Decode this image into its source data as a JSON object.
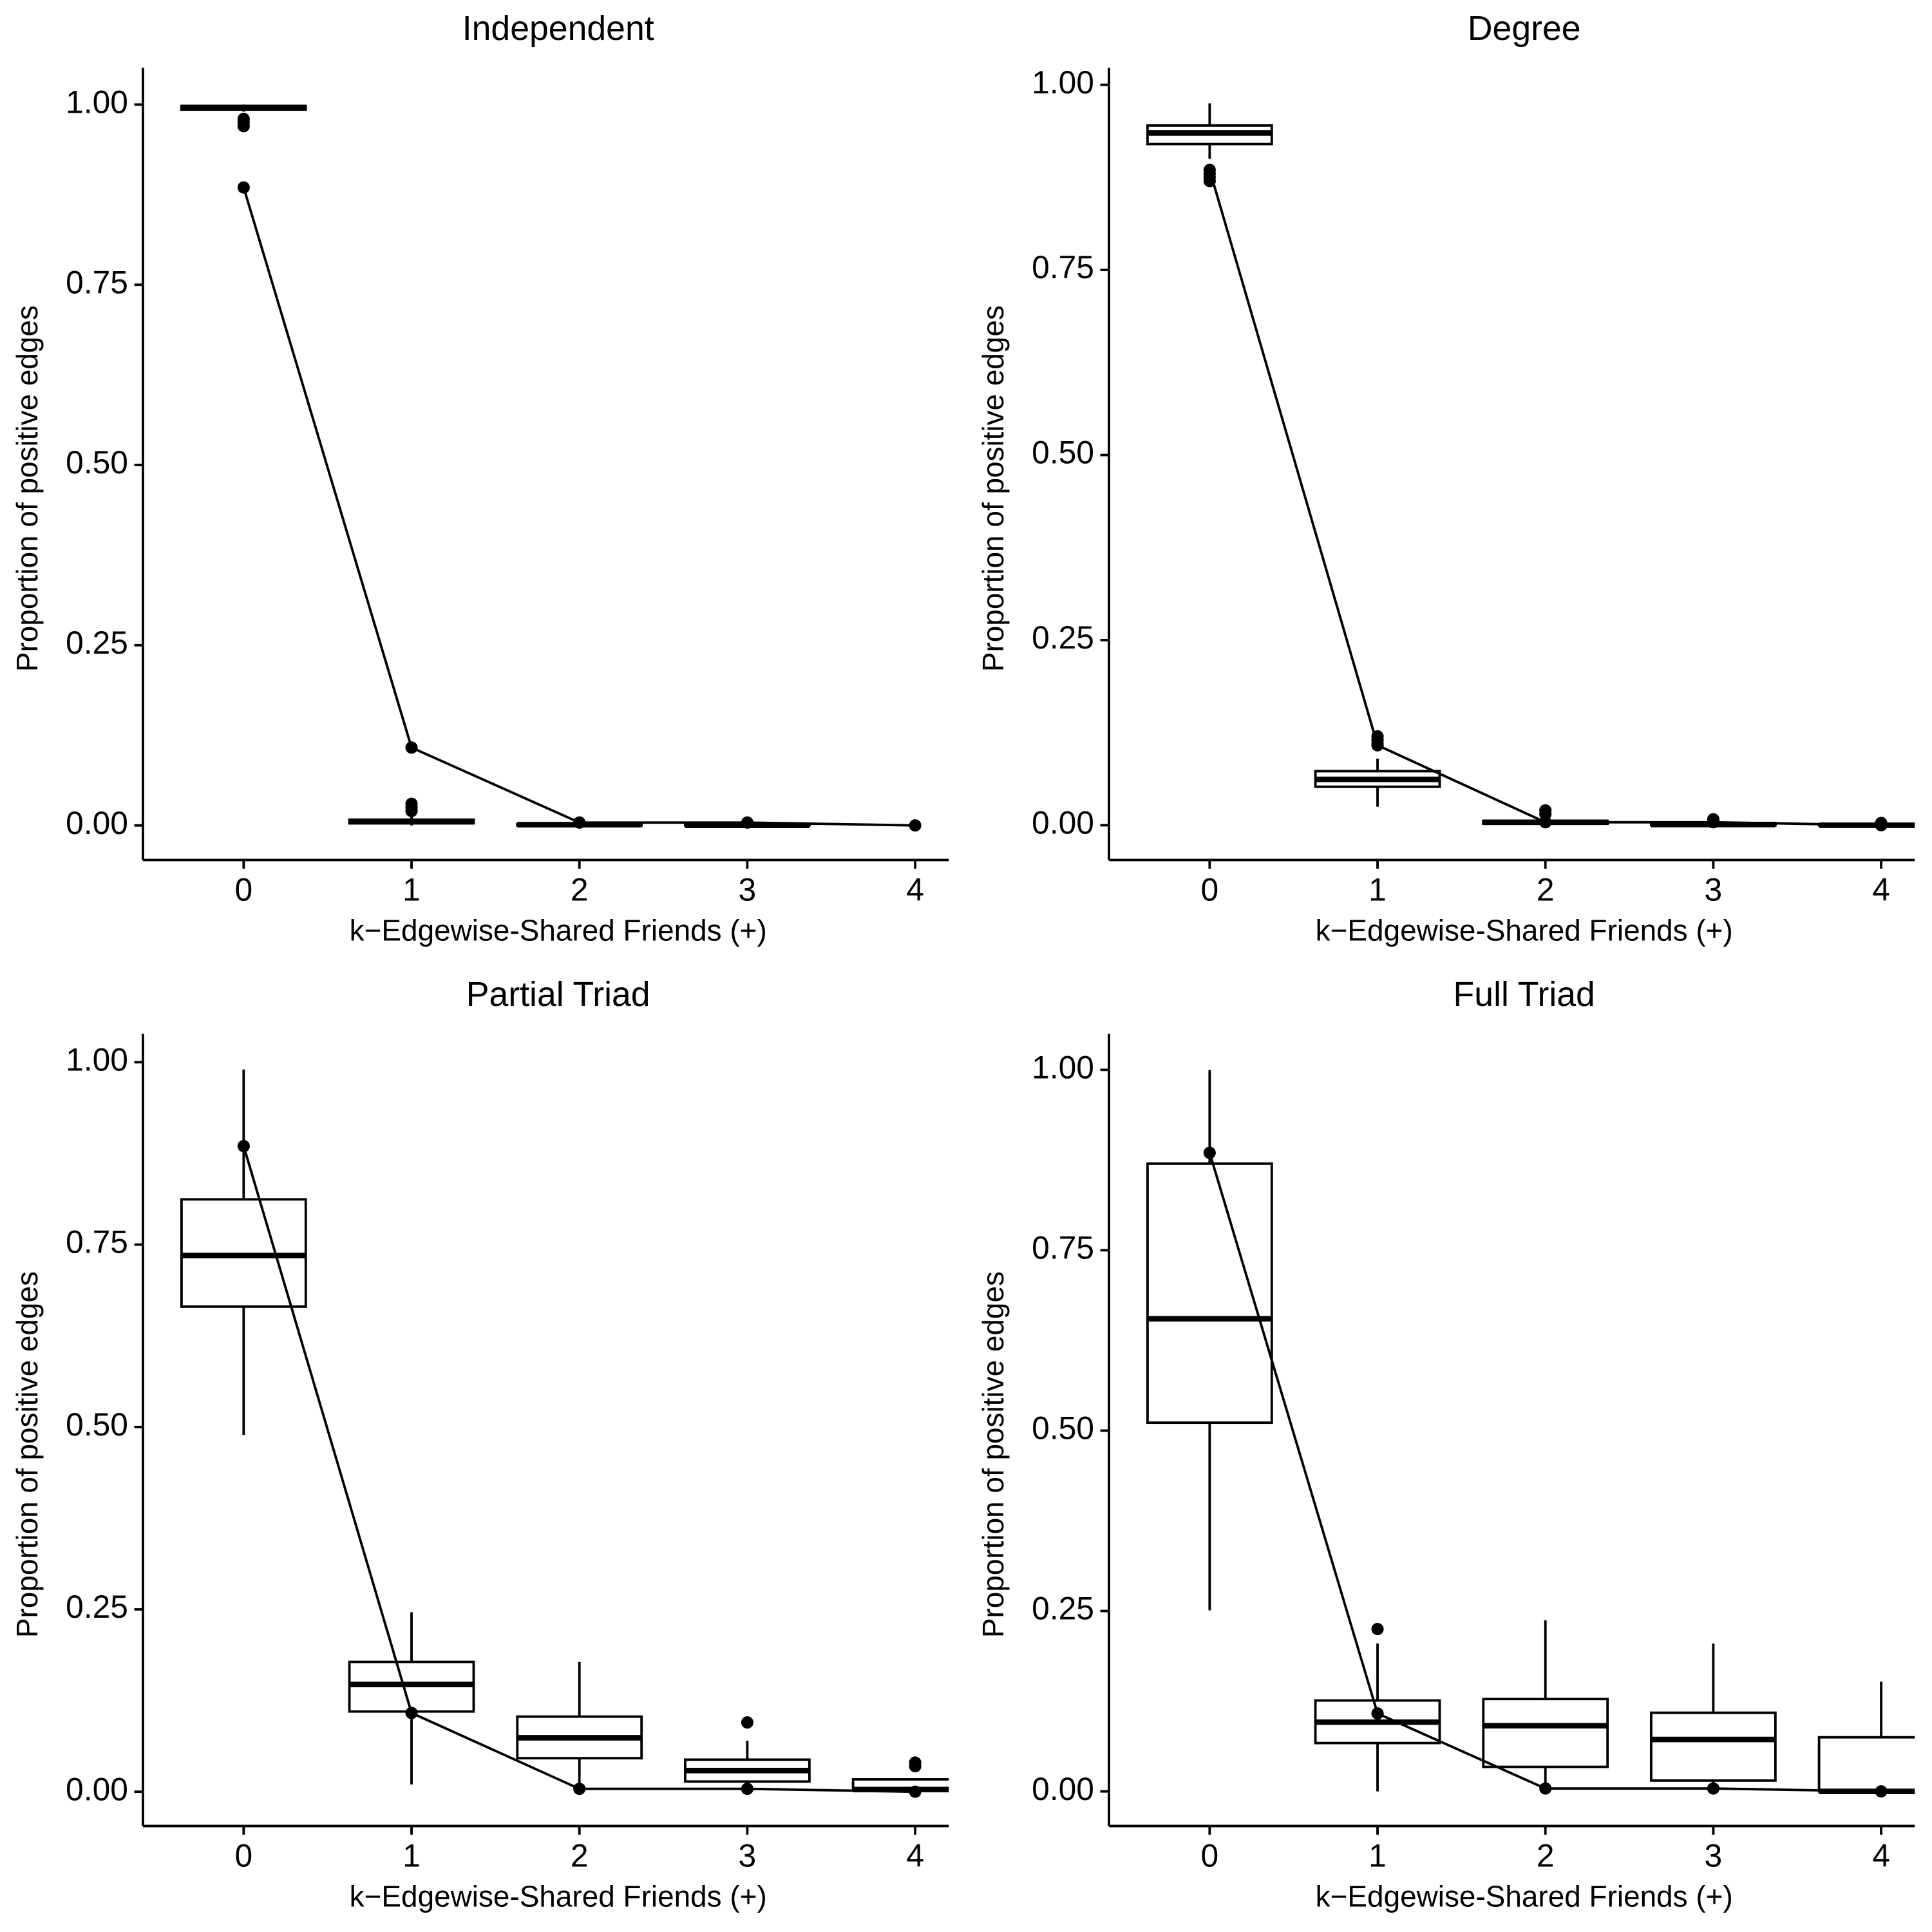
{
  "chart_data": [
    {
      "type": "box",
      "title": "Independent",
      "xlabel": "k−Edgewise-Shared Friends (+)",
      "ylabel": "Proportion of positive edges",
      "xlim": [
        -0.6,
        4.2
      ],
      "xticks": [
        0,
        1,
        2,
        3,
        4
      ],
      "ylim": [
        -0.048,
        1.051
      ],
      "yticks": [
        {
          "value": 0,
          "label": "0.00"
        },
        {
          "value": 0.25,
          "label": "0.25"
        },
        {
          "value": 0.5,
          "label": "0.50"
        },
        {
          "value": 0.75,
          "label": "0.75"
        },
        {
          "value": 1,
          "label": "1.00"
        }
      ],
      "boxes": [
        {
          "q1": 0.993,
          "median": 0.996,
          "q3": 0.998,
          "whisker_low": 0.99,
          "whisker_high": 1.0,
          "outliers": [
            0.98,
            0.975,
            0.97
          ]
        },
        {
          "q1": 0.003,
          "median": 0.005,
          "q3": 0.008,
          "whisker_low": 0.0,
          "whisker_high": 0.012,
          "outliers": [
            0.02,
            0.025,
            0.03
          ]
        },
        {
          "q1": 0.0,
          "median": 0.001,
          "q3": 0.002,
          "whisker_low": 0.0,
          "whisker_high": 0.003,
          "outliers": []
        },
        {
          "q1": 0.0,
          "median": 0.0,
          "q3": 0.001,
          "whisker_low": 0.0,
          "whisker_high": 0.002,
          "outliers": []
        },
        null
      ],
      "observed": [
        0.885,
        0.108,
        0.004,
        0.004,
        0.0
      ]
    },
    {
      "type": "box",
      "title": "Degree",
      "xlabel": "k−Edgewise-Shared Friends (+)",
      "ylabel": "Proportion of positive edges",
      "xlim": [
        -0.6,
        4.2
      ],
      "xticks": [
        0,
        1,
        2,
        3,
        4
      ],
      "ylim": [
        -0.047,
        1.023
      ],
      "yticks": [
        {
          "value": 0,
          "label": "0.00"
        },
        {
          "value": 0.25,
          "label": "0.25"
        },
        {
          "value": 0.5,
          "label": "0.50"
        },
        {
          "value": 0.75,
          "label": "0.75"
        },
        {
          "value": 1,
          "label": "1.00"
        }
      ],
      "boxes": [
        {
          "q1": 0.92,
          "median": 0.935,
          "q3": 0.945,
          "whisker_low": 0.9,
          "whisker_high": 0.975,
          "outliers": [
            0.88,
            0.875,
            0.87
          ]
        },
        {
          "q1": 0.052,
          "median": 0.062,
          "q3": 0.073,
          "whisker_low": 0.025,
          "whisker_high": 0.09,
          "outliers": [
            0.11,
            0.115,
            0.12
          ]
        },
        {
          "q1": 0.002,
          "median": 0.004,
          "q3": 0.006,
          "whisker_low": 0.0,
          "whisker_high": 0.01,
          "outliers": [
            0.015,
            0.02
          ]
        },
        {
          "q1": 0.0,
          "median": 0.001,
          "q3": 0.003,
          "whisker_low": 0.0,
          "whisker_high": 0.005,
          "outliers": [
            0.006,
            0.008
          ]
        },
        {
          "q1": 0.0,
          "median": 0.0,
          "q3": 0.0,
          "whisker_low": 0.0,
          "whisker_high": 0.0,
          "outliers": [
            0.003
          ]
        }
      ],
      "observed": [
        0.885,
        0.108,
        0.004,
        0.004,
        0.0
      ]
    },
    {
      "type": "box",
      "title": "Partial Triad",
      "xlabel": "k−Edgewise-Shared Friends (+)",
      "ylabel": "Proportion of positive edges",
      "xlim": [
        -0.6,
        4.2
      ],
      "xticks": [
        0,
        1,
        2,
        3,
        4
      ],
      "ylim": [
        -0.047,
        1.039
      ],
      "yticks": [
        {
          "value": 0,
          "label": "0.00"
        },
        {
          "value": 0.25,
          "label": "0.25"
        },
        {
          "value": 0.5,
          "label": "0.50"
        },
        {
          "value": 0.75,
          "label": "0.75"
        },
        {
          "value": 1,
          "label": "1.00"
        }
      ],
      "boxes": [
        {
          "q1": 0.665,
          "median": 0.735,
          "q3": 0.812,
          "whisker_low": 0.489,
          "whisker_high": 0.99,
          "outliers": []
        },
        {
          "q1": 0.11,
          "median": 0.147,
          "q3": 0.178,
          "whisker_low": 0.01,
          "whisker_high": 0.246,
          "outliers": []
        },
        {
          "q1": 0.046,
          "median": 0.074,
          "q3": 0.103,
          "whisker_low": 0.005,
          "whisker_high": 0.178,
          "outliers": []
        },
        {
          "q1": 0.014,
          "median": 0.029,
          "q3": 0.044,
          "whisker_low": 0.0,
          "whisker_high": 0.07,
          "outliers": [
            0.095
          ]
        },
        {
          "q1": 0.003,
          "median": 0.003,
          "q3": 0.017,
          "whisker_low": 0.0,
          "whisker_high": 0.017,
          "outliers": [
            0.04,
            0.035
          ]
        }
      ],
      "observed": [
        0.885,
        0.108,
        0.004,
        0.004,
        0.0
      ]
    },
    {
      "type": "box",
      "title": "Full Triad",
      "xlabel": "k−Edgewise-Shared Friends (+)",
      "ylabel": "Proportion of positive edges",
      "xlim": [
        -0.6,
        4.2
      ],
      "xticks": [
        0,
        1,
        2,
        3,
        4
      ],
      "ylim": [
        -0.048,
        1.05
      ],
      "yticks": [
        {
          "value": 0,
          "label": "0.00"
        },
        {
          "value": 0.25,
          "label": "0.25"
        },
        {
          "value": 0.5,
          "label": "0.50"
        },
        {
          "value": 0.75,
          "label": "0.75"
        },
        {
          "value": 1,
          "label": "1.00"
        }
      ],
      "boxes": [
        {
          "q1": 0.511,
          "median": 0.655,
          "q3": 0.87,
          "whisker_low": 0.251,
          "whisker_high": 1.0,
          "outliers": []
        },
        {
          "q1": 0.067,
          "median": 0.096,
          "q3": 0.126,
          "whisker_low": 0.0,
          "whisker_high": 0.205,
          "outliers": [
            0.225
          ]
        },
        {
          "q1": 0.034,
          "median": 0.091,
          "q3": 0.128,
          "whisker_low": 0.004,
          "whisker_high": 0.237,
          "outliers": []
        },
        {
          "q1": 0.015,
          "median": 0.072,
          "q3": 0.109,
          "whisker_low": 0.004,
          "whisker_high": 0.205,
          "outliers": []
        },
        {
          "q1": 0.0,
          "median": 0.0,
          "q3": 0.075,
          "whisker_low": 0.0,
          "whisker_high": 0.152,
          "outliers": []
        }
      ],
      "observed": [
        0.885,
        0.108,
        0.004,
        0.004,
        0.0
      ]
    }
  ]
}
